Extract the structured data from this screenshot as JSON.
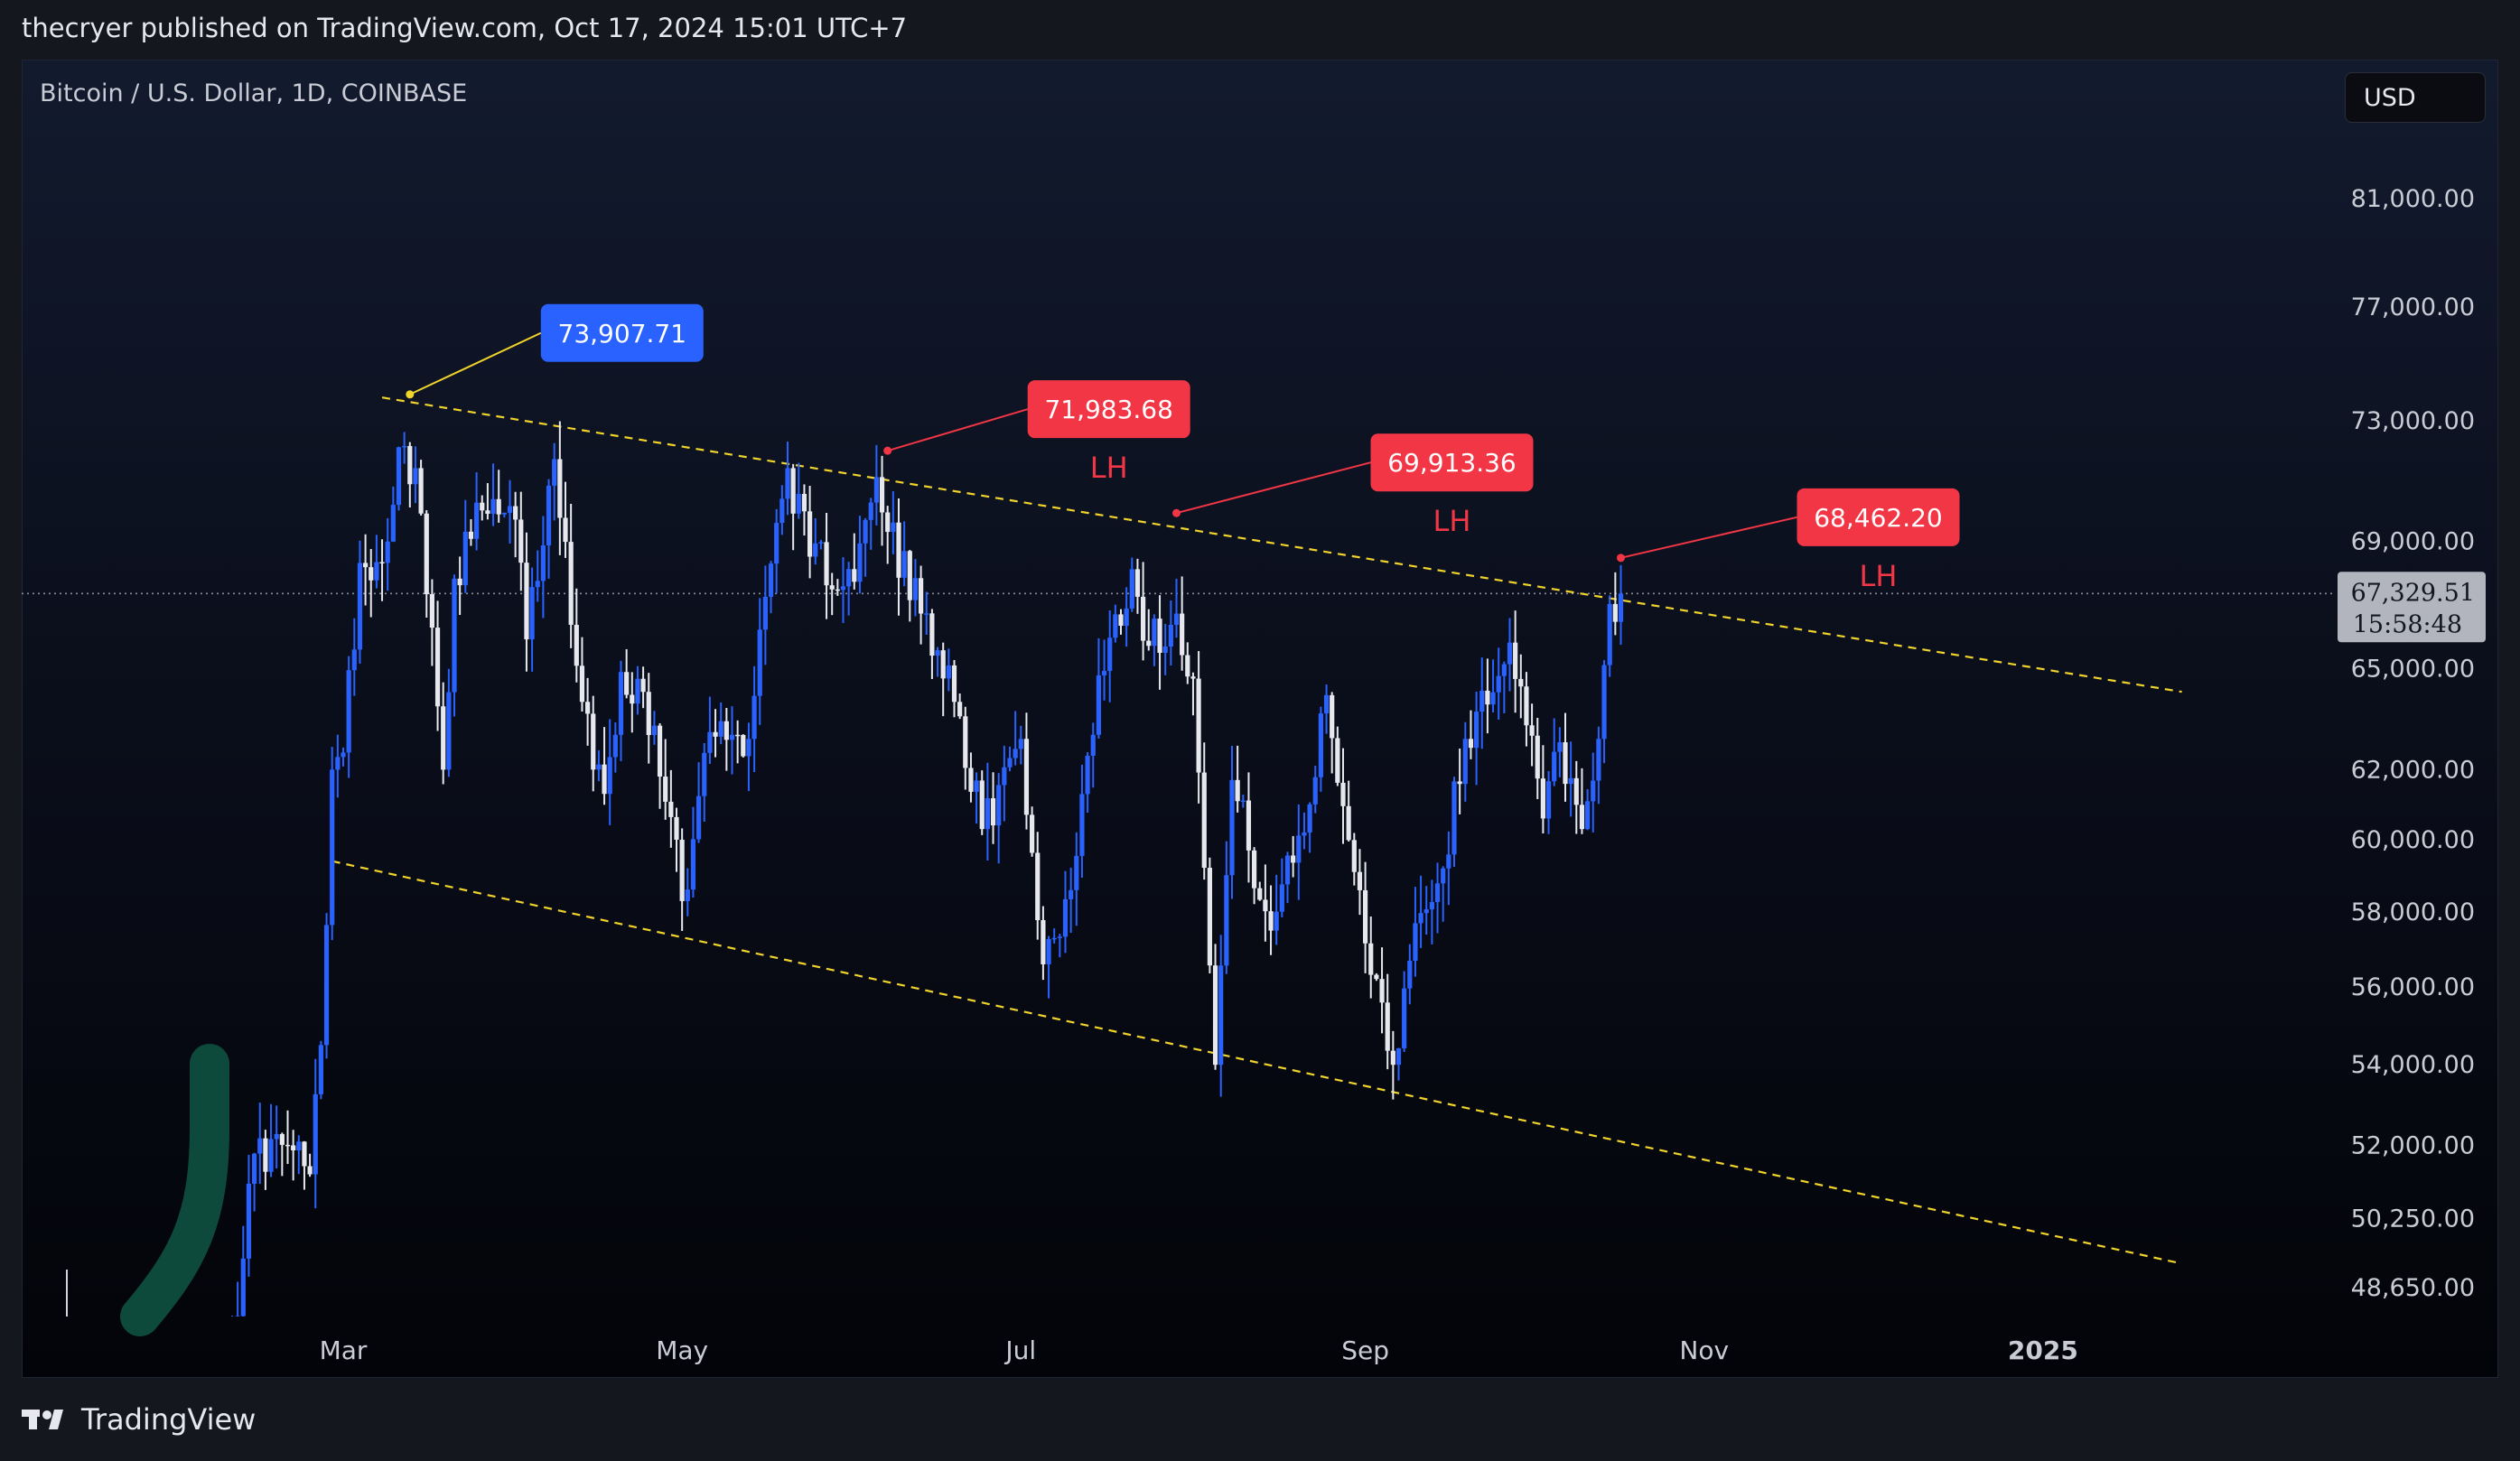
{
  "header": {
    "text": "thecryer published on TradingView.com, Oct 17, 2024 15:01 UTC+7"
  },
  "symbol": {
    "text": "Bitcoin / U.S. Dollar, 1D, COINBASE"
  },
  "currency": {
    "label": "USD"
  },
  "footer": {
    "brand": "TradingView",
    "logo_icon": "tradingview-logo-icon"
  },
  "colors": {
    "up_candle": "#2962ff",
    "down_candle": "#e6e8ee",
    "blue_label": "#2962ff",
    "red_label": "#f23645",
    "trendline": "#f0d32b",
    "price_badge": "#b2b5be"
  },
  "chart_data": {
    "type": "candlestick",
    "title": "Bitcoin / U.S. Dollar, 1D, COINBASE",
    "y_scale": "log",
    "y_ticks": [
      {
        "value": 81000,
        "label": "81,000.00"
      },
      {
        "value": 77000,
        "label": "77,000.00"
      },
      {
        "value": 73000,
        "label": "73,000.00"
      },
      {
        "value": 69000,
        "label": "69,000.00"
      },
      {
        "value": 65000,
        "label": "65,000.00"
      },
      {
        "value": 62000,
        "label": "62,000.00"
      },
      {
        "value": 60000,
        "label": "60,000.00"
      },
      {
        "value": 58000,
        "label": "58,000.00"
      },
      {
        "value": 56000,
        "label": "56,000.00"
      },
      {
        "value": 54000,
        "label": "54,000.00"
      },
      {
        "value": 52000,
        "label": "52,000.00"
      },
      {
        "value": 50250,
        "label": "50,250.00"
      },
      {
        "value": 48650,
        "label": "48,650.00"
      }
    ],
    "x_ticks": [
      {
        "date": "2024-03-01",
        "label": "Mar"
      },
      {
        "date": "2024-05-01",
        "label": "May"
      },
      {
        "date": "2024-07-01",
        "label": "Jul"
      },
      {
        "date": "2024-09-01",
        "label": "Sep"
      },
      {
        "date": "2024-11-01",
        "label": "Nov"
      },
      {
        "date": "2025-01-01",
        "label": "2025"
      }
    ],
    "last_price": {
      "value": 67329.51,
      "label": "67,329.51",
      "countdown": "15:58:48"
    },
    "price_anchors": [
      {
        "date": "2024-02-10",
        "close": 47500
      },
      {
        "date": "2024-02-14",
        "close": 51800
      },
      {
        "date": "2024-02-20",
        "close": 52000
      },
      {
        "date": "2024-02-24",
        "close": 51300
      },
      {
        "date": "2024-02-26",
        "close": 54500
      },
      {
        "date": "2024-02-28",
        "close": 62000
      },
      {
        "date": "2024-03-01",
        "close": 62500
      },
      {
        "date": "2024-03-04",
        "close": 68300
      },
      {
        "date": "2024-03-08",
        "close": 68300
      },
      {
        "date": "2024-03-11",
        "close": 72100
      },
      {
        "date": "2024-03-14",
        "close": 71400
      },
      {
        "date": "2024-03-19",
        "close": 62000
      },
      {
        "date": "2024-03-21",
        "close": 67800
      },
      {
        "date": "2024-03-26",
        "close": 70000
      },
      {
        "date": "2024-04-01",
        "close": 69700
      },
      {
        "date": "2024-04-03",
        "close": 65900
      },
      {
        "date": "2024-04-08",
        "close": 71700
      },
      {
        "date": "2024-04-13",
        "close": 64000
      },
      {
        "date": "2024-04-17",
        "close": 61300
      },
      {
        "date": "2024-04-20",
        "close": 64900
      },
      {
        "date": "2024-04-24",
        "close": 64300
      },
      {
        "date": "2024-04-30",
        "close": 60000
      },
      {
        "date": "2024-05-01",
        "close": 58300
      },
      {
        "date": "2024-05-06",
        "close": 63100
      },
      {
        "date": "2024-05-13",
        "close": 62900
      },
      {
        "date": "2024-05-15",
        "close": 66200
      },
      {
        "date": "2024-05-20",
        "close": 71400
      },
      {
        "date": "2024-05-24",
        "close": 68500
      },
      {
        "date": "2024-06-01",
        "close": 67700
      },
      {
        "date": "2024-06-05",
        "close": 71100
      },
      {
        "date": "2024-06-07",
        "close": 69300
      },
      {
        "date": "2024-06-13",
        "close": 66700
      },
      {
        "date": "2024-06-18",
        "close": 65100
      },
      {
        "date": "2024-06-24",
        "close": 60300
      },
      {
        "date": "2024-07-01",
        "close": 62900
      },
      {
        "date": "2024-07-05",
        "close": 56600
      },
      {
        "date": "2024-07-10",
        "close": 58600
      },
      {
        "date": "2024-07-15",
        "close": 64800
      },
      {
        "date": "2024-07-21",
        "close": 68100
      },
      {
        "date": "2024-07-24",
        "close": 65700
      },
      {
        "date": "2024-07-29",
        "close": 66700
      },
      {
        "date": "2024-08-01",
        "close": 64700
      },
      {
        "date": "2024-08-05",
        "close": 54000
      },
      {
        "date": "2024-08-08",
        "close": 61700
      },
      {
        "date": "2024-08-15",
        "close": 57500
      },
      {
        "date": "2024-08-22",
        "close": 61000
      },
      {
        "date": "2024-08-25",
        "close": 64200
      },
      {
        "date": "2024-08-30",
        "close": 59100
      },
      {
        "date": "2024-09-06",
        "close": 54000
      },
      {
        "date": "2024-09-10",
        "close": 57700
      },
      {
        "date": "2024-09-15",
        "close": 59200
      },
      {
        "date": "2024-09-19",
        "close": 62900
      },
      {
        "date": "2024-09-27",
        "close": 65800
      },
      {
        "date": "2024-09-30",
        "close": 63300
      },
      {
        "date": "2024-10-03",
        "close": 60600
      },
      {
        "date": "2024-10-06",
        "close": 62800
      },
      {
        "date": "2024-10-10",
        "close": 60300
      },
      {
        "date": "2024-10-13",
        "close": 62900
      },
      {
        "date": "2024-10-15",
        "close": 67000
      },
      {
        "date": "2024-10-17",
        "close": 67329
      }
    ],
    "channel_lines": [
      {
        "name": "upper",
        "points": [
          {
            "date": "2024-03-08",
            "price": 73800
          },
          {
            "date": "2025-01-26",
            "price": 64300
          }
        ]
      },
      {
        "name": "lower",
        "points": [
          {
            "date": "2024-02-28",
            "price": 59400
          },
          {
            "date": "2025-01-26",
            "price": 49200
          }
        ]
      }
    ],
    "annotations": [
      {
        "label": "73,907.71",
        "sublabel": "",
        "color": "blue",
        "anchor": {
          "date": "2024-03-13",
          "price": 73907.71
        }
      },
      {
        "label": "71,983.68",
        "sublabel": "LH",
        "color": "red",
        "anchor": {
          "date": "2024-06-07",
          "price": 71983.68
        }
      },
      {
        "label": "69,913.36",
        "sublabel": "LH",
        "color": "red",
        "anchor": {
          "date": "2024-07-29",
          "price": 69913.36
        }
      },
      {
        "label": "68,462.20",
        "sublabel": "LH",
        "color": "red",
        "anchor": {
          "date": "2024-10-17",
          "price": 68462.2
        }
      }
    ]
  }
}
